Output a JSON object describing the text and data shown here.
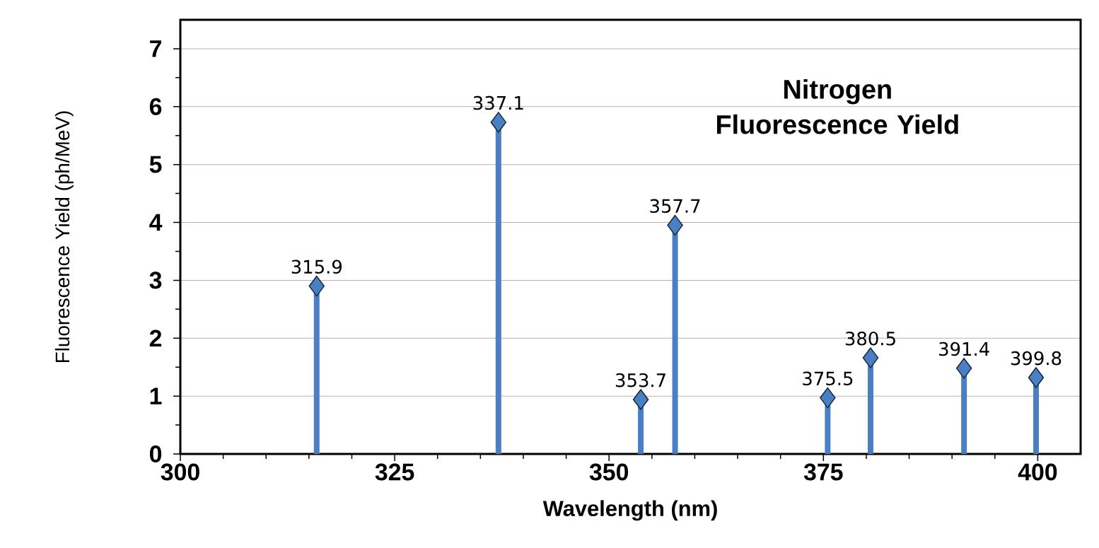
{
  "chart_data": {
    "type": "lollipop",
    "title": "Nitrogen Fluorescence Yield",
    "xlabel": "Wavelength (nm)",
    "ylabel": "Fluorescence  Yield (ph/MeV)",
    "x": [
      315.9,
      337.1,
      353.7,
      357.7,
      375.5,
      380.5,
      391.4,
      399.8
    ],
    "values": [
      2.9,
      5.73,
      0.94,
      3.95,
      0.97,
      1.66,
      1.48,
      1.32
    ],
    "color": "#4a7fc1",
    "marker": "diamond",
    "grid": "y",
    "xlim": [
      300,
      405
    ],
    "xticks": [
      300,
      325,
      350,
      375,
      400
    ],
    "ylim": [
      0,
      7.5
    ],
    "yticks": [
      0,
      1,
      2,
      3,
      4,
      5,
      6,
      7
    ],
    "annotations": [
      {
        "text": "315.9",
        "x": 315.9,
        "y": 2.9
      },
      {
        "text": "337.1",
        "x": 337.1,
        "y": 5.73
      },
      {
        "text": "353.7",
        "x": 353.7,
        "y": 0.94
      },
      {
        "text": "357.7",
        "x": 357.7,
        "y": 3.95
      },
      {
        "text": "375.5",
        "x": 375.5,
        "y": 0.97
      },
      {
        "text": "380.5",
        "x": 380.5,
        "y": 1.66
      },
      {
        "text": "391.4",
        "x": 391.4,
        "y": 1.48
      },
      {
        "text": "399.8",
        "x": 399.8,
        "y": 1.32
      }
    ]
  }
}
